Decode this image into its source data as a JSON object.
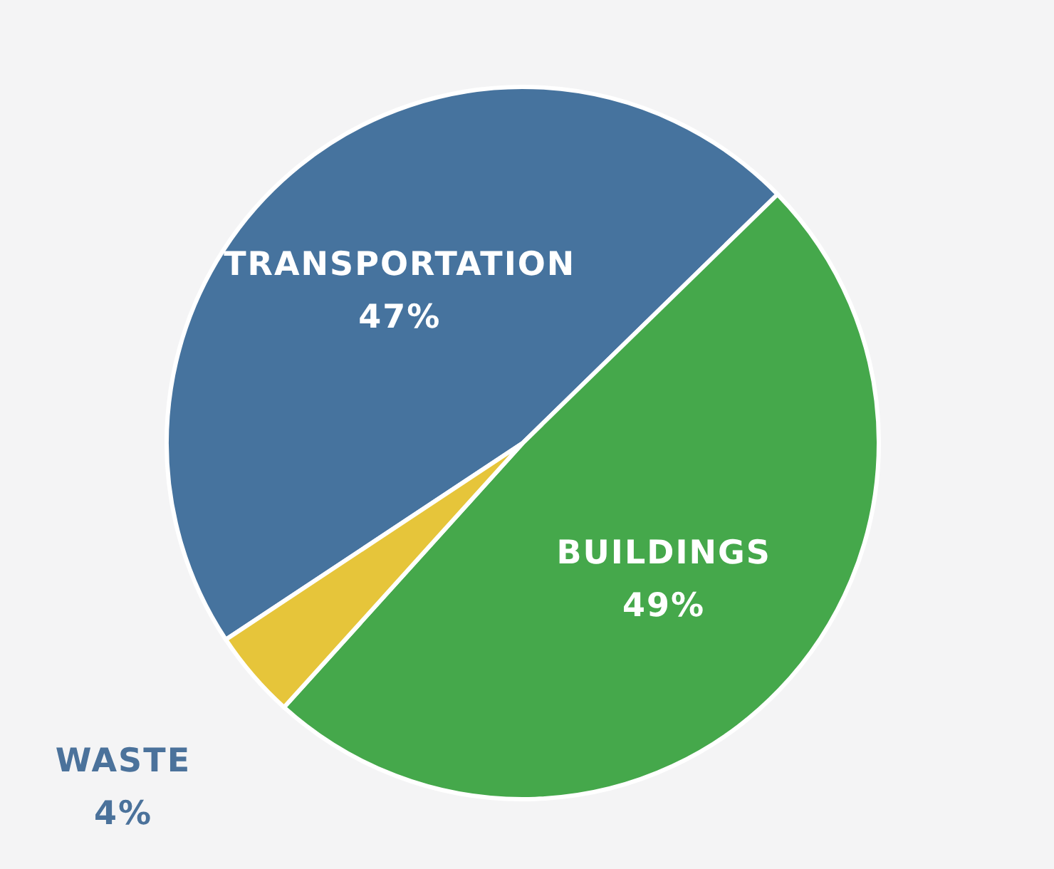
{
  "chart_data": {
    "type": "pie",
    "categories": [
      "TRANSPORTATION",
      "BUILDINGS",
      "WASTE"
    ],
    "values": [
      47,
      49,
      4
    ],
    "colors": [
      "#46739e",
      "#45a84b",
      "#e6c53a"
    ],
    "value_labels": [
      "47%",
      "49%",
      "4%"
    ]
  }
}
